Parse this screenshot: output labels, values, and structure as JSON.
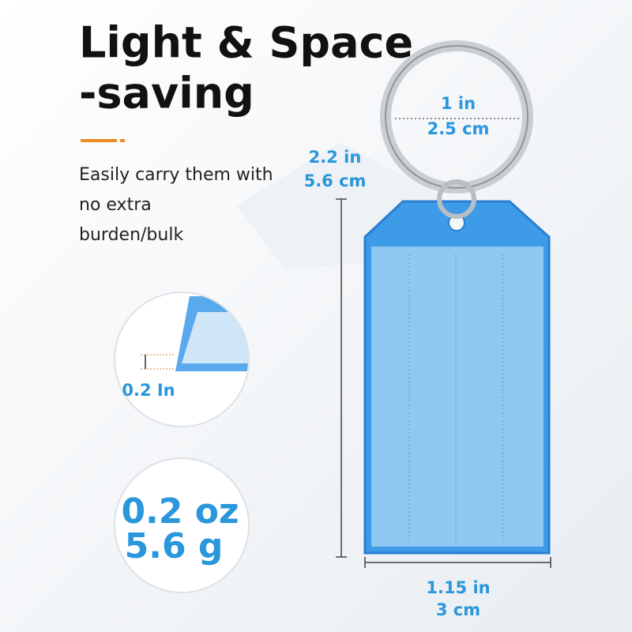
{
  "header": {
    "title": [
      "Light & Space",
      "-saving"
    ]
  },
  "description": [
    "Easily carry them with",
    "no extra",
    "burden/bulk"
  ],
  "dimensions": {
    "ring": [
      "1 in",
      "2.5 cm"
    ],
    "height": [
      "2.2 in",
      "5.6 cm"
    ],
    "width": [
      "1.15 in",
      "3 cm"
    ],
    "thickness": "0.2 In"
  },
  "weight": [
    "0.2 oz",
    "5.6 g"
  ]
}
